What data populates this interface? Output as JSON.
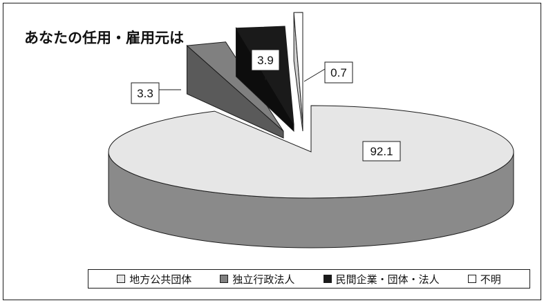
{
  "chart_data": {
    "type": "pie",
    "style": "3d-exploded",
    "title": "あなたの任用・雇用元は",
    "categories": [
      "地方公共団体",
      "独立行政法人",
      "民間企業・団体・法人",
      "不明"
    ],
    "values": [
      92.1,
      3.3,
      3.9,
      0.7
    ],
    "data_labels": [
      "92.1",
      "3.3",
      "3.9",
      "0.7"
    ],
    "colors": [
      "#e6e6e6",
      "#808080",
      "#1a1a1a",
      "#ffffff"
    ],
    "side_colors": [
      "#8a8a8a",
      "#5a5a5a",
      "#0d0d0d",
      "#cfcfcf"
    ],
    "legend_position": "bottom",
    "grid": false
  }
}
